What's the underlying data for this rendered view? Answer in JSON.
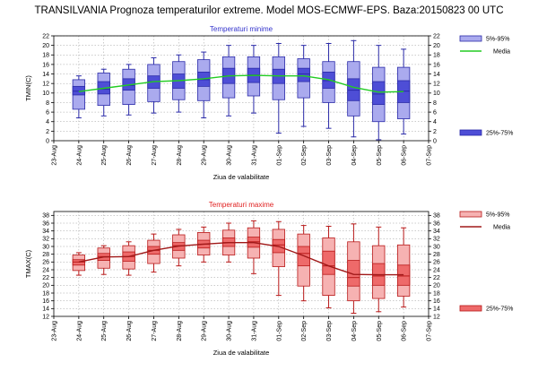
{
  "page": {
    "title": "TRANSILVANIA  Prognoza temperaturilor extreme.  Model MOS-ECMWF-EPS. Baza:20150823 00 UTC"
  },
  "chart_data": [
    {
      "type": "boxplot",
      "title": "Temperaturi minime",
      "title_color": "#3333cc",
      "xlabel": "Ziua de valabilitate",
      "ylabel": "TMIN(C)",
      "ylim": [
        0,
        22
      ],
      "yticks": [
        0,
        2,
        4,
        6,
        8,
        10,
        12,
        14,
        16,
        18,
        20,
        22
      ],
      "grid": true,
      "categories": [
        "23-Aug",
        "24-Aug",
        "25-Aug",
        "26-Aug",
        "27-Aug",
        "28-Aug",
        "29-Aug",
        "30-Aug",
        "31-Aug",
        "01-Sep",
        "02-Sep",
        "03-Sep",
        "04-Sep",
        "05-Sep",
        "06-Sep",
        "07-Sep"
      ],
      "colors": {
        "outer": "#aaaaee",
        "inner": "#4e4ed6",
        "outline": "#2a2aa8",
        "mean_line": "#22cc22"
      },
      "legend": {
        "outer_label": "5%-95%",
        "inner_label": "25%-75%",
        "mean_label": "Media"
      },
      "boxes": [
        {
          "category": "24-Aug",
          "min": 4.8,
          "p5": 6.6,
          "p25": 9.6,
          "median": 10.4,
          "p75": 11.4,
          "p95": 12.8,
          "max": 13.6
        },
        {
          "category": "25-Aug",
          "min": 5.2,
          "p5": 7.4,
          "p25": 9.8,
          "median": 10.8,
          "p75": 12.4,
          "p95": 14.2,
          "max": 15.0
        },
        {
          "category": "26-Aug",
          "min": 5.4,
          "p5": 7.6,
          "p25": 10.6,
          "median": 11.6,
          "p75": 13.0,
          "p95": 15.0,
          "max": 16.0
        },
        {
          "category": "27-Aug",
          "min": 5.8,
          "p5": 8.2,
          "p25": 11.0,
          "median": 12.4,
          "p75": 13.6,
          "p95": 16.0,
          "max": 17.4
        },
        {
          "category": "28-Aug",
          "min": 6.0,
          "p5": 8.6,
          "p25": 11.0,
          "median": 12.6,
          "p75": 14.0,
          "p95": 16.6,
          "max": 18.0
        },
        {
          "category": "29-Aug",
          "min": 4.8,
          "p5": 8.4,
          "p25": 11.4,
          "median": 12.8,
          "p75": 14.4,
          "p95": 17.0,
          "max": 18.6
        },
        {
          "category": "30-Aug",
          "min": 5.2,
          "p5": 9.0,
          "p25": 12.0,
          "median": 13.6,
          "p75": 15.2,
          "p95": 17.6,
          "max": 20.0
        },
        {
          "category": "31-Aug",
          "min": 5.8,
          "p5": 9.4,
          "p25": 12.2,
          "median": 13.8,
          "p75": 15.2,
          "p95": 17.6,
          "max": 20.0
        },
        {
          "category": "01-Sep",
          "min": 1.6,
          "p5": 8.6,
          "p25": 12.0,
          "median": 13.6,
          "p75": 15.0,
          "p95": 17.6,
          "max": 20.4
        },
        {
          "category": "02-Sep",
          "min": 3.0,
          "p5": 9.0,
          "p25": 12.4,
          "median": 14.0,
          "p75": 15.2,
          "p95": 17.2,
          "max": 20.0
        },
        {
          "category": "03-Sep",
          "min": 2.6,
          "p5": 8.0,
          "p25": 11.0,
          "median": 12.6,
          "p75": 14.4,
          "p95": 16.6,
          "max": 20.4
        },
        {
          "category": "04-Sep",
          "min": 0.8,
          "p5": 5.2,
          "p25": 8.4,
          "median": 10.6,
          "p75": 13.0,
          "p95": 16.6,
          "max": 21.0
        },
        {
          "category": "05-Sep",
          "min": 0.2,
          "p5": 4.0,
          "p25": 7.6,
          "median": 9.8,
          "p75": 12.4,
          "p95": 15.4,
          "max": 20.0
        },
        {
          "category": "06-Sep",
          "min": 1.4,
          "p5": 4.6,
          "p25": 8.0,
          "median": 10.4,
          "p75": 12.6,
          "p95": 15.4,
          "max": 19.2
        }
      ],
      "mean": [
        {
          "category": "24-Aug",
          "value": 10.3
        },
        {
          "category": "25-Aug",
          "value": 11.0
        },
        {
          "category": "26-Aug",
          "value": 11.7
        },
        {
          "category": "27-Aug",
          "value": 12.4
        },
        {
          "category": "28-Aug",
          "value": 12.6
        },
        {
          "category": "29-Aug",
          "value": 13.0
        },
        {
          "category": "30-Aug",
          "value": 13.6
        },
        {
          "category": "31-Aug",
          "value": 13.7
        },
        {
          "category": "01-Sep",
          "value": 13.6
        },
        {
          "category": "02-Sep",
          "value": 13.6
        },
        {
          "category": "03-Sep",
          "value": 12.8
        },
        {
          "category": "04-Sep",
          "value": 11.2
        },
        {
          "category": "05-Sep",
          "value": 10.2
        },
        {
          "category": "06-Sep",
          "value": 10.3
        }
      ]
    },
    {
      "type": "boxplot",
      "title": "Temperaturi maxime",
      "title_color": "#e02020",
      "xlabel": "Ziua de valabilitate",
      "ylabel": "TMAX(C)",
      "ylim": [
        12,
        39
      ],
      "yticks": [
        12,
        14,
        16,
        18,
        20,
        22,
        24,
        26,
        28,
        30,
        32,
        34,
        36,
        38
      ],
      "grid": true,
      "categories": [
        "23-Aug",
        "24-Aug",
        "25-Aug",
        "26-Aug",
        "27-Aug",
        "28-Aug",
        "29-Aug",
        "30-Aug",
        "31-Aug",
        "01-Sep",
        "02-Sep",
        "03-Sep",
        "04-Sep",
        "05-Sep",
        "06-Sep",
        "07-Sep"
      ],
      "colors": {
        "outer": "#f6b2b2",
        "inner": "#ee6a6a",
        "outline": "#b81818",
        "mean_line": "#a01818"
      },
      "legend": {
        "outer_label": "5%-95%",
        "inner_label": "25%-75%",
        "mean_label": "Media"
      },
      "boxes": [
        {
          "category": "24-Aug",
          "min": 22.6,
          "p5": 23.8,
          "p25": 25.2,
          "median": 26.0,
          "p75": 26.6,
          "p95": 27.8,
          "max": 28.4
        },
        {
          "category": "25-Aug",
          "min": 22.8,
          "p5": 24.4,
          "p25": 26.4,
          "median": 27.4,
          "p75": 28.2,
          "p95": 29.6,
          "max": 30.2
        },
        {
          "category": "26-Aug",
          "min": 22.6,
          "p5": 24.2,
          "p25": 26.2,
          "median": 27.4,
          "p75": 28.6,
          "p95": 30.2,
          "max": 31.2
        },
        {
          "category": "27-Aug",
          "min": 23.4,
          "p5": 25.6,
          "p25": 28.0,
          "median": 29.0,
          "p75": 30.0,
          "p95": 31.6,
          "max": 33.2
        },
        {
          "category": "28-Aug",
          "min": 25.0,
          "p5": 27.0,
          "p25": 29.0,
          "median": 30.2,
          "p75": 31.0,
          "p95": 33.0,
          "max": 34.4
        },
        {
          "category": "29-Aug",
          "min": 26.0,
          "p5": 27.8,
          "p25": 29.6,
          "median": 30.6,
          "p75": 31.6,
          "p95": 33.6,
          "max": 35.0
        },
        {
          "category": "30-Aug",
          "min": 26.0,
          "p5": 27.8,
          "p25": 30.0,
          "median": 31.0,
          "p75": 32.2,
          "p95": 34.2,
          "max": 36.0
        },
        {
          "category": "31-Aug",
          "min": 23.0,
          "p5": 27.0,
          "p25": 29.8,
          "median": 31.2,
          "p75": 32.4,
          "p95": 34.8,
          "max": 36.6
        },
        {
          "category": "01-Sep",
          "min": 17.4,
          "p5": 24.8,
          "p25": 28.4,
          "median": 30.4,
          "p75": 31.8,
          "p95": 34.4,
          "max": 36.4
        },
        {
          "category": "02-Sep",
          "min": 16.0,
          "p5": 19.8,
          "p25": 25.0,
          "median": 28.2,
          "p75": 30.0,
          "p95": 33.2,
          "max": 35.4
        },
        {
          "category": "03-Sep",
          "min": 14.2,
          "p5": 17.4,
          "p25": 22.8,
          "median": 25.0,
          "p75": 28.8,
          "p95": 32.2,
          "max": 35.2
        },
        {
          "category": "04-Sep",
          "min": 12.8,
          "p5": 16.0,
          "p25": 19.8,
          "median": 22.0,
          "p75": 26.4,
          "p95": 31.2,
          "max": 35.8
        },
        {
          "category": "05-Sep",
          "min": 13.2,
          "p5": 16.6,
          "p25": 20.0,
          "median": 22.4,
          "p75": 25.6,
          "p95": 30.2,
          "max": 35.0
        },
        {
          "category": "06-Sep",
          "min": 14.4,
          "p5": 17.2,
          "p25": 20.0,
          "median": 22.4,
          "p75": 25.2,
          "p95": 30.4,
          "max": 34.8
        }
      ],
      "mean": [
        {
          "category": "24-Aug",
          "value": 26.0
        },
        {
          "category": "25-Aug",
          "value": 27.3
        },
        {
          "category": "26-Aug",
          "value": 27.4
        },
        {
          "category": "27-Aug",
          "value": 29.0
        },
        {
          "category": "28-Aug",
          "value": 30.1
        },
        {
          "category": "29-Aug",
          "value": 30.6
        },
        {
          "category": "30-Aug",
          "value": 31.0
        },
        {
          "category": "31-Aug",
          "value": 31.0
        },
        {
          "category": "01-Sep",
          "value": 30.0
        },
        {
          "category": "02-Sep",
          "value": 27.6
        },
        {
          "category": "03-Sep",
          "value": 25.0
        },
        {
          "category": "04-Sep",
          "value": 22.8
        },
        {
          "category": "05-Sep",
          "value": 22.7
        },
        {
          "category": "06-Sep",
          "value": 22.7
        }
      ]
    }
  ]
}
